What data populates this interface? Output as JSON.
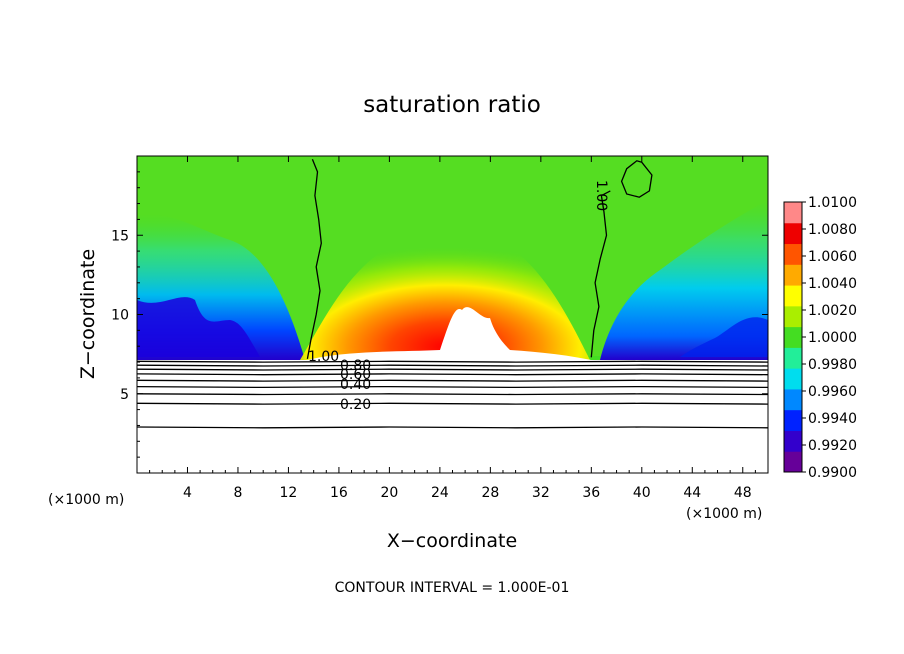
{
  "chart_data": {
    "type": "heatmap",
    "title": "saturation ratio",
    "xlabel": "X−coordinate",
    "ylabel": "Z−coordinate",
    "x_unit_left": "(×1000 m)",
    "x_unit_right": "(×1000 m)",
    "xlim": [
      0,
      50
    ],
    "ylim": [
      0,
      20
    ],
    "x_ticks": [
      4,
      8,
      12,
      16,
      20,
      24,
      28,
      32,
      36,
      40,
      44,
      48
    ],
    "x_tick_labels": [
      "4",
      "8",
      "12",
      "16",
      "20",
      "24",
      "28",
      "32",
      "36",
      "40",
      "44",
      "48"
    ],
    "y_ticks": [
      5,
      10,
      15
    ],
    "y_tick_labels": [
      "5",
      "10",
      "15"
    ],
    "colorbar": {
      "min": 0.99,
      "max": 1.01,
      "tick_labels": [
        "0.9900",
        "0.9920",
        "0.9940",
        "0.9960",
        "0.9980",
        "1.0000",
        "1.0020",
        "1.0040",
        "1.0060",
        "1.0080",
        "1.0100"
      ],
      "colors": [
        "#660099",
        "#3300cc",
        "#0022ff",
        "#0088ff",
        "#00ddee",
        "#22ee99",
        "#44dd22",
        "#aaee00",
        "#ffff00",
        "#ffaa00",
        "#ff5500",
        "#ee0000",
        "#ff8888"
      ]
    },
    "contour_lines": [
      {
        "level": 1.0,
        "label": "1.00",
        "segment": "left-cloud-edge",
        "x": [
          13.5,
          13.8,
          14.2,
          14.5,
          14.2,
          14.6,
          14.4,
          14.1,
          14.3,
          13.9
        ],
        "y": [
          7.2,
          8.5,
          10,
          11.5,
          13,
          14.5,
          16,
          17.5,
          19,
          19.8
        ]
      },
      {
        "level": 1.0,
        "label": "1.00",
        "segment": "right-cloud-edge",
        "x": [
          36.0,
          36.2,
          36.6,
          36.3,
          36.7,
          37.2,
          37.0,
          36.8,
          37.5
        ],
        "y": [
          7.3,
          9,
          10.5,
          12,
          13.5,
          15,
          16.5,
          17.5,
          17.8
        ]
      },
      {
        "level": 1.0,
        "segment": "right-loop",
        "x": [
          40.0,
          40.8,
          40.6,
          39.8,
          38.8,
          38.4,
          38.8,
          39.6,
          40.0
        ],
        "y": [
          19.6,
          18.8,
          17.8,
          17.4,
          17.6,
          18.4,
          19.2,
          19.7,
          19.6
        ]
      },
      {
        "level": 0.9,
        "x": [
          0,
          10,
          20,
          30,
          40,
          50
        ],
        "y": [
          7.05,
          7.0,
          7.05,
          7.0,
          7.05,
          7.0
        ]
      },
      {
        "level": 0.8,
        "label": "0.80",
        "x": [
          0,
          10,
          20,
          30,
          40,
          50
        ],
        "y": [
          6.8,
          6.75,
          6.8,
          6.75,
          6.8,
          6.75
        ]
      },
      {
        "level": 0.7,
        "x": [
          0,
          10,
          20,
          30,
          40,
          50
        ],
        "y": [
          6.55,
          6.5,
          6.55,
          6.5,
          6.55,
          6.5
        ]
      },
      {
        "level": 0.6,
        "label": "0.60",
        "x": [
          0,
          10,
          20,
          30,
          40,
          50
        ],
        "y": [
          6.25,
          6.2,
          6.25,
          6.2,
          6.25,
          6.2
        ]
      },
      {
        "level": 0.5,
        "x": [
          0,
          10,
          20,
          30,
          40,
          50
        ],
        "y": [
          5.85,
          5.8,
          5.85,
          5.8,
          5.85,
          5.8
        ]
      },
      {
        "level": 0.4,
        "label": "0.40",
        "x": [
          0,
          10,
          20,
          30,
          40,
          50
        ],
        "y": [
          5.45,
          5.4,
          5.45,
          5.4,
          5.45,
          5.4
        ]
      },
      {
        "level": 0.3,
        "x": [
          0,
          10,
          20,
          30,
          40,
          50
        ],
        "y": [
          5.0,
          4.95,
          5.0,
          4.95,
          5.0,
          4.95
        ]
      },
      {
        "level": 0.2,
        "label": "0.20",
        "x": [
          0,
          10,
          20,
          30,
          40,
          50
        ],
        "y": [
          4.4,
          4.35,
          4.4,
          4.35,
          4.4,
          4.35
        ]
      },
      {
        "level": 0.1,
        "x": [
          0,
          10,
          20,
          30,
          40,
          50
        ],
        "y": [
          2.9,
          2.85,
          2.9,
          2.85,
          2.9,
          2.85
        ]
      }
    ],
    "footnote": "CONTOUR INTERVAL = 1.000E-01"
  }
}
